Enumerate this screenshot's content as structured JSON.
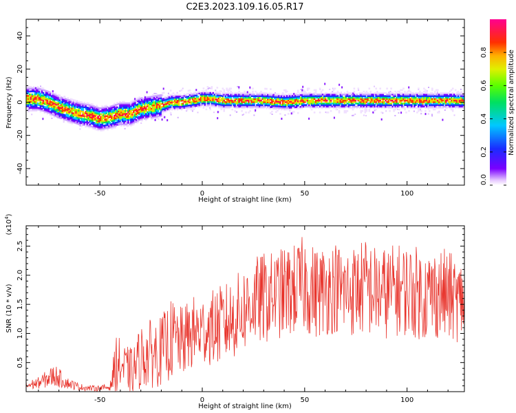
{
  "title": "C2E3.2023.109.16.05.R17",
  "colors": {
    "snr_line": "#e8342c",
    "axis": "#000000",
    "background": "#ffffff"
  },
  "chart_data": [
    {
      "type": "heatmap",
      "xlabel": "Height of straight line (km)",
      "ylabel": "Frequency (Hz)",
      "xlim": [
        -86,
        128
      ],
      "ylim": [
        -50,
        50
      ],
      "x_ticks": [
        -50,
        0,
        50,
        100
      ],
      "y_ticks": [
        -40,
        -20,
        0,
        20,
        40
      ],
      "colorbar": {
        "label": "Normalized spectral amplitude",
        "range": [
          0,
          1
        ],
        "ticks": [
          "0.0",
          "0.2",
          "0.4",
          "0.6",
          "0.8"
        ],
        "tick_values": [
          0,
          0.2,
          0.4,
          0.6,
          0.8
        ],
        "colormap": "rainbow (violet-blue-cyan-green-yellow-orange-red-magenta)"
      },
      "ridge_frequency": {
        "x": [
          -86,
          -80,
          -75,
          -70,
          -65,
          -60,
          -55,
          -50,
          -45,
          -40,
          -35,
          -30,
          -25,
          -20,
          -15,
          -10,
          -5,
          0,
          5,
          10,
          20,
          30,
          40,
          50,
          60,
          70,
          80,
          90,
          100,
          110,
          120,
          128
        ],
        "y": [
          2,
          2,
          0,
          -3,
          -5,
          -7,
          -8,
          -10,
          -9,
          -7,
          -7,
          -4,
          -3,
          -2,
          0,
          0,
          1,
          2,
          2,
          1,
          1,
          1,
          0,
          1,
          1,
          1,
          1,
          1,
          1,
          1,
          1,
          1
        ]
      }
    },
    {
      "type": "line",
      "xlabel": "Height of straight line (km)",
      "ylabel": "SNR (10 * v/v)",
      "y_multiplier": "(x10^4)",
      "multiplier_base": "(x10",
      "multiplier_exp": "4",
      "multiplier_close": ")",
      "xlim": [
        -86,
        128
      ],
      "ylim": [
        0,
        2.85
      ],
      "x_ticks": [
        -50,
        0,
        50,
        100
      ],
      "y_ticks": [
        0.5,
        1.0,
        1.5,
        2.0,
        2.5
      ],
      "y_tick_labels": [
        "0.5",
        "1.0",
        "1.5",
        "2.0",
        "2.5"
      ],
      "envelope": {
        "x": [
          -86,
          -80,
          -72,
          -66,
          -60,
          -55,
          -50,
          -45,
          -42,
          -38,
          -34,
          -30,
          -25,
          -20,
          -15,
          -10,
          -5,
          0,
          5,
          10,
          15,
          20,
          25,
          30,
          35,
          40,
          45,
          50,
          55,
          60,
          65,
          70,
          75,
          80,
          85,
          90,
          95,
          100,
          105,
          110,
          115,
          120,
          125,
          128
        ],
        "mid": [
          0.1,
          0.15,
          0.28,
          0.15,
          0.08,
          0.06,
          0.06,
          0.08,
          0.5,
          0.4,
          0.35,
          0.6,
          0.65,
          0.7,
          0.9,
          0.85,
          1.0,
          1.05,
          1.1,
          1.15,
          1.25,
          1.4,
          1.55,
          1.6,
          1.65,
          1.7,
          1.75,
          1.85,
          1.7,
          1.75,
          1.8,
          1.7,
          1.75,
          1.8,
          1.7,
          1.7,
          1.75,
          1.75,
          1.7,
          1.65,
          1.7,
          1.65,
          1.55,
          1.6
        ],
        "amp": [
          0.08,
          0.1,
          0.2,
          0.1,
          0.06,
          0.05,
          0.05,
          0.06,
          0.5,
          0.4,
          0.4,
          0.55,
          0.6,
          0.6,
          0.7,
          0.6,
          0.65,
          0.6,
          0.65,
          0.7,
          0.7,
          0.75,
          0.75,
          0.8,
          0.75,
          0.8,
          0.8,
          0.85,
          0.8,
          0.8,
          0.8,
          0.8,
          0.8,
          0.85,
          0.8,
          0.8,
          0.8,
          0.8,
          0.8,
          0.8,
          0.8,
          0.8,
          0.7,
          0.7
        ]
      }
    }
  ]
}
